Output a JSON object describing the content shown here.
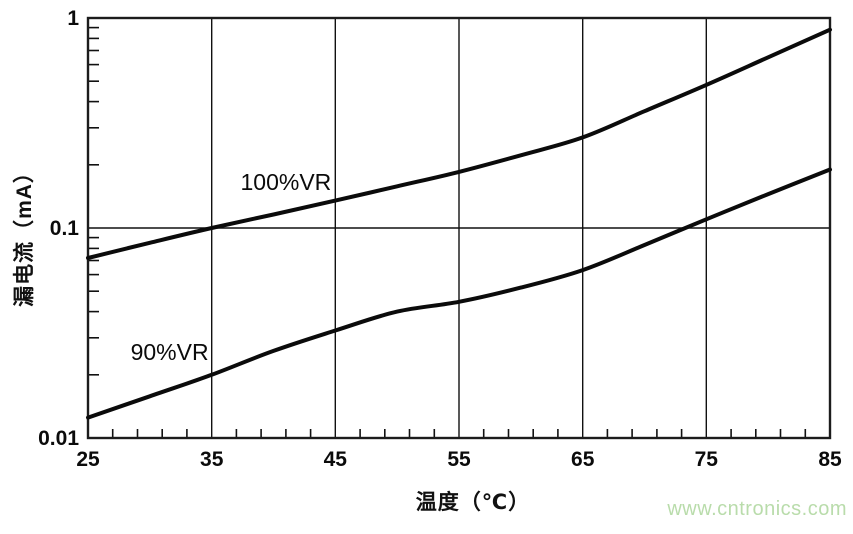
{
  "watermark": {
    "text": "www.cntronics.com",
    "color": "#b9dcab"
  },
  "chart_data": {
    "type": "line",
    "title": "",
    "xlabel": "温度（℃）",
    "ylabel": "漏电流（mA）",
    "x": [
      25,
      30,
      35,
      40,
      45,
      50,
      55,
      60,
      65,
      70,
      75,
      80,
      85
    ],
    "xlim": [
      25,
      85
    ],
    "x_ticks": [
      25,
      35,
      45,
      55,
      65,
      75,
      85
    ],
    "x_minor_step": 2,
    "y_scale": "log",
    "ylim": [
      0.01,
      1
    ],
    "y_ticks": [
      1,
      0.1,
      0.01
    ],
    "y_tick_labels": [
      "1",
      "0.1",
      "0.01"
    ],
    "grid": {
      "vertical_at": [
        35,
        45,
        55,
        65,
        75
      ],
      "horizontal_at": [
        0.1
      ]
    },
    "legend_position": "inline-labels",
    "line_color": "#0b0b0b",
    "series": [
      {
        "name": "100%VR",
        "values": [
          0.072,
          0.085,
          0.1,
          0.116,
          0.135,
          0.158,
          0.185,
          0.222,
          0.27,
          0.36,
          0.48,
          0.65,
          0.88
        ],
        "label_pos": {
          "x": 41.0,
          "y": 0.152
        }
      },
      {
        "name": "90%VR",
        "values": [
          0.0125,
          0.0158,
          0.02,
          0.026,
          0.0325,
          0.04,
          0.0445,
          0.052,
          0.063,
          0.083,
          0.11,
          0.145,
          0.19
        ],
        "label_pos": {
          "x": 31.6,
          "y": 0.0235
        }
      }
    ]
  }
}
